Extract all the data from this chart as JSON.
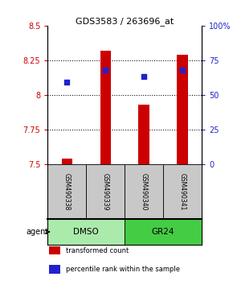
{
  "title": "GDS3583 / 263696_at",
  "samples": [
    "GSM490338",
    "GSM490339",
    "GSM490340",
    "GSM490341"
  ],
  "bar_values": [
    7.54,
    8.32,
    7.93,
    8.29
  ],
  "bar_bottom": 7.5,
  "percentile_values": [
    8.09,
    8.18,
    8.13,
    8.18
  ],
  "ylim_left": [
    7.5,
    8.5
  ],
  "ylim_right": [
    0,
    100
  ],
  "yticks_left": [
    7.5,
    7.75,
    8.0,
    8.25,
    8.5
  ],
  "yticks_right": [
    0,
    25,
    50,
    75,
    100
  ],
  "ytick_labels_left": [
    "7.5",
    "7.75",
    "8",
    "8.25",
    "8.5"
  ],
  "ytick_labels_right": [
    "0",
    "25",
    "50",
    "75",
    "100%"
  ],
  "hlines": [
    7.75,
    8.0,
    8.25
  ],
  "bar_color": "#cc0000",
  "dot_color": "#2222cc",
  "agent_groups": [
    {
      "label": "DMSO",
      "color": "#aaeaaa",
      "span": [
        0,
        2
      ]
    },
    {
      "label": "GR24",
      "color": "#44cc44",
      "span": [
        2,
        4
      ]
    }
  ],
  "agent_label": "agent",
  "legend_items": [
    {
      "color": "#cc0000",
      "label": "transformed count"
    },
    {
      "color": "#2222cc",
      "label": "percentile rank within the sample"
    }
  ],
  "bar_width": 0.28,
  "sample_box_color": "#c8c8c8",
  "plot_bg": "#ffffff",
  "left_tick_color": "#cc0000",
  "right_tick_color": "#2222cc"
}
